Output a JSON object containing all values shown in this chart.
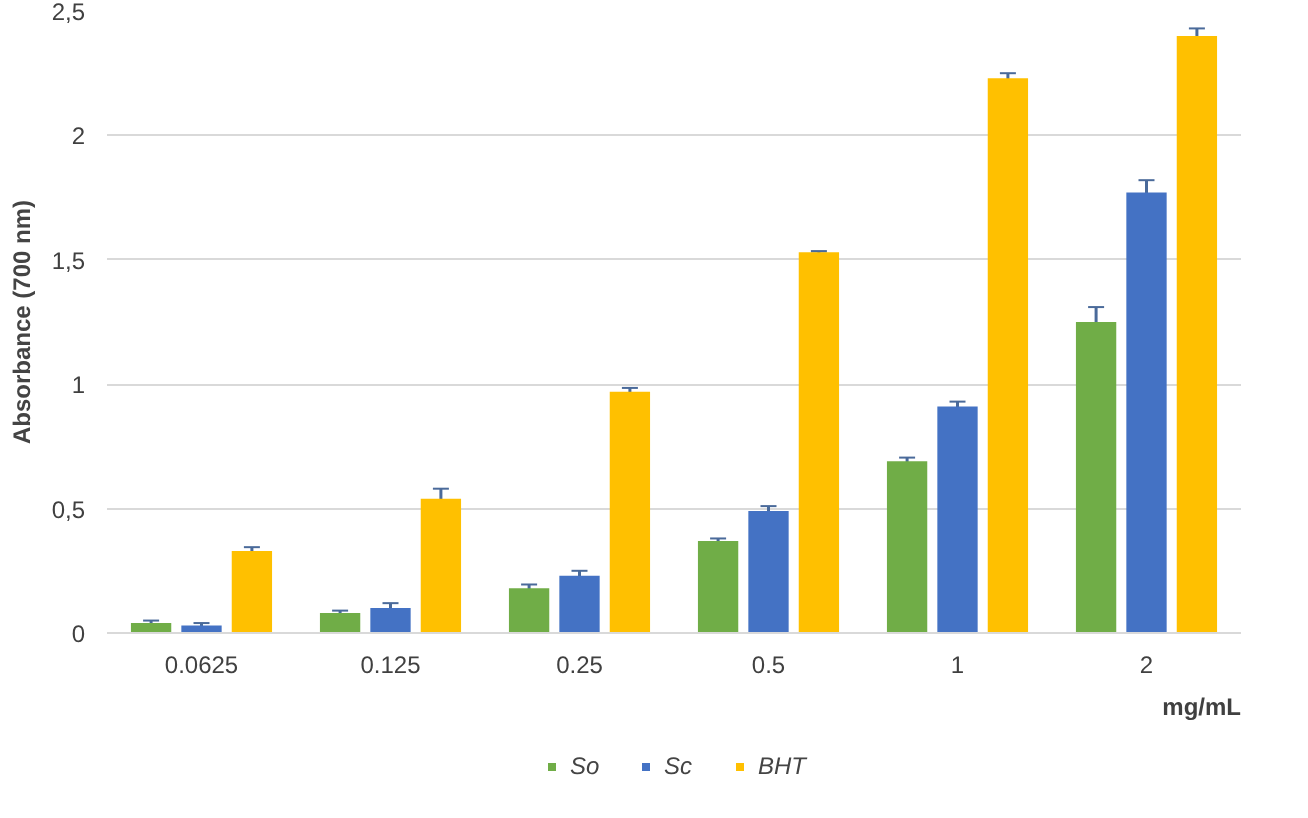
{
  "chart_data": {
    "type": "bar",
    "ylabel": "Absorbance (700 nm)",
    "xlabel": "mg/mL",
    "categories": [
      "0.0625",
      "0.125",
      "0.25",
      "0.5",
      "1",
      "2"
    ],
    "series": [
      {
        "name": "So",
        "color": "#70ad47",
        "values": [
          0.04,
          0.08,
          0.18,
          0.37,
          0.69,
          1.25
        ],
        "errors": [
          0.01,
          0.01,
          0.015,
          0.01,
          0.015,
          0.06
        ]
      },
      {
        "name": "Sc",
        "color": "#4472c4",
        "values": [
          0.03,
          0.1,
          0.23,
          0.49,
          0.91,
          1.77
        ],
        "errors": [
          0.01,
          0.02,
          0.02,
          0.02,
          0.02,
          0.05
        ]
      },
      {
        "name": "BHT",
        "color": "#ffc000",
        "values": [
          0.33,
          0.54,
          0.97,
          1.53,
          2.23,
          2.4
        ],
        "errors": [
          0.015,
          0.04,
          0.015,
          0.005,
          0.02,
          0.03
        ]
      }
    ],
    "ylim": [
      0,
      2.5
    ],
    "yticks": [
      0,
      {
        "value": 0.5,
        "label": "0,5"
      },
      1,
      {
        "value": 1.5,
        "label": "1,5"
      },
      2,
      {
        "value": 2.5,
        "label": "2,5"
      }
    ],
    "grid": "y",
    "legend": "bottom"
  }
}
